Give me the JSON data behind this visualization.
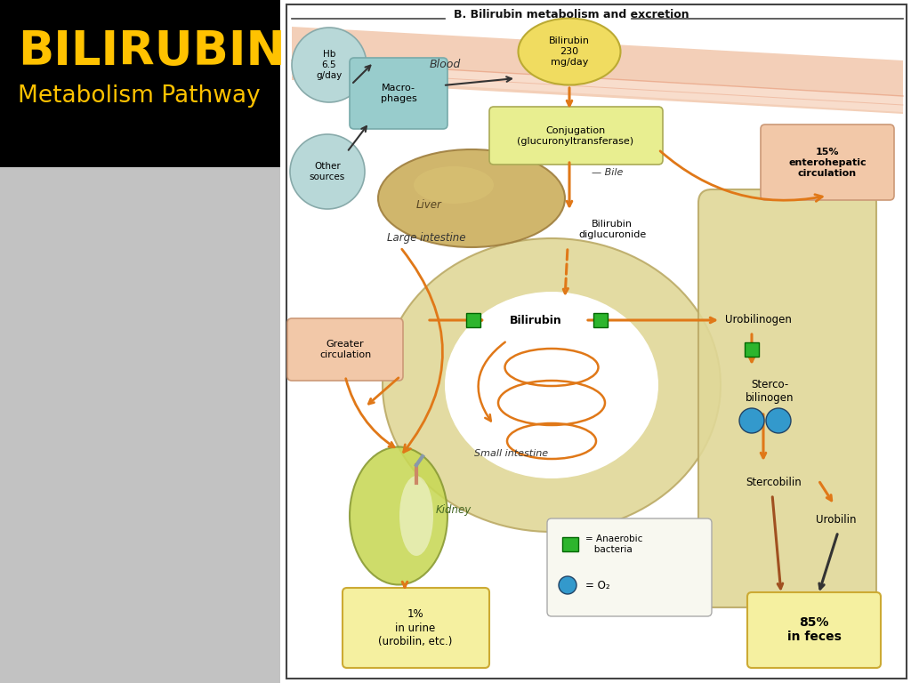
{
  "title": "BILIRUBIN",
  "subtitle": "Metabolism Pathway",
  "section_title": "B. Bilirubin metabolism and excretion",
  "left_bg": "#000000",
  "gray_bg": "#C0C0C0",
  "right_bg": "#FFFFFF",
  "title_color": "#FFC200",
  "orange": "#E07818",
  "dark_arrow": "#333333",
  "brown_arrow": "#A05020",
  "green": "#2DB52D",
  "blue": "#3399CC",
  "light_yellow": "#F5F0A0",
  "light_peach": "#F2C8A8",
  "macrophage_color": "#98CCCC",
  "hb_color": "#B8D8D8",
  "other_color": "#B8D8D8",
  "bilirubin_ellipse_color": "#F0DC60",
  "conjugation_color": "#E8EE90",
  "entero_color": "#F2C8A8",
  "greater_color": "#F2C8A8",
  "intestine_color": "#E0D898",
  "liver_color": "#CCB060",
  "kidney_color": "#C8D855",
  "skin_top": "#F0C0A0",
  "skin_line": "#E8A888"
}
